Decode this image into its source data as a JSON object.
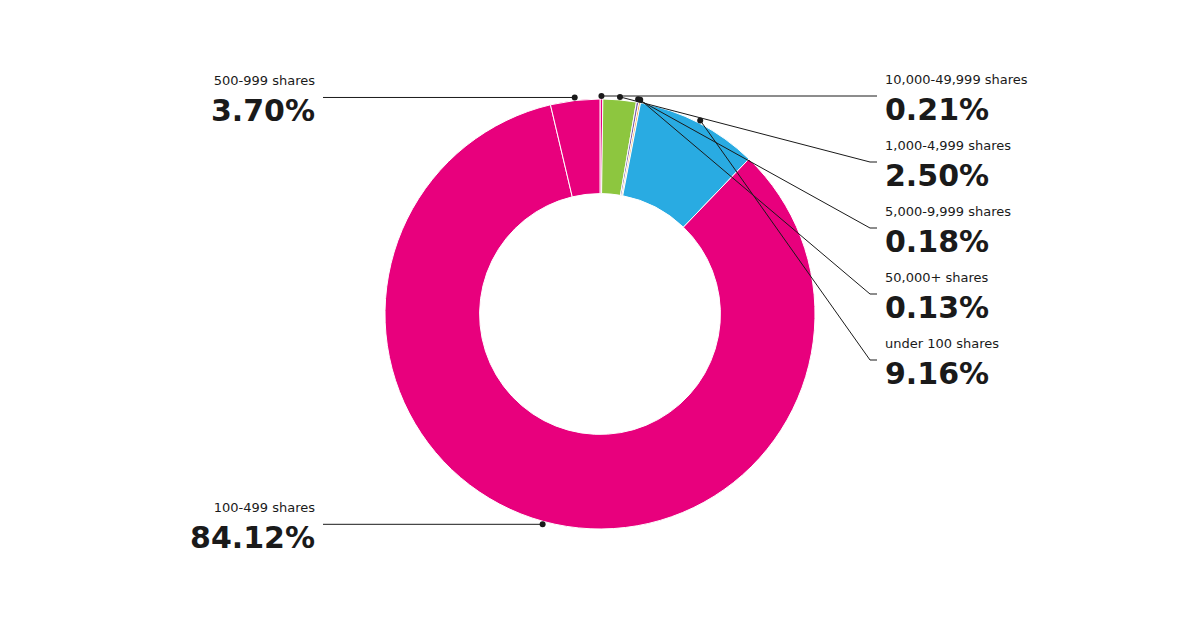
{
  "chart_data": {
    "type": "donut",
    "categories": [
      "10,000-49,999 shares",
      "1,000-4,999 shares",
      "5,000-9,999 shares",
      "50,000+ shares",
      "under 100 shares",
      "100-499 shares",
      "500-999 shares"
    ],
    "values": [
      0.21,
      2.5,
      0.18,
      0.13,
      9.16,
      84.12,
      3.7
    ],
    "value_labels": [
      "0.21%",
      "2.50%",
      "0.18%",
      "0.13%",
      "9.16%",
      "84.12%",
      "3.70%"
    ],
    "colors": [
      "#E8007D",
      "#8DC63F",
      "#7B5EA7",
      "#F7941D",
      "#29ABE2",
      "#E8007D",
      "#E8007D"
    ],
    "data_labels": true
  }
}
